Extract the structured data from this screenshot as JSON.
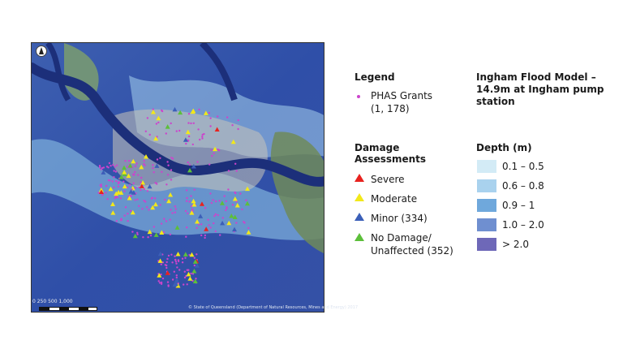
{
  "map": {
    "scale_text": "0 250 500 1,000",
    "credit": "© State of Queensland (Department of Natural Resources, Mines and Energy) 2017"
  },
  "legend": {
    "title": "Legend",
    "phas": {
      "label_line1": "PHAS Grants",
      "label_line2": "(1, 178)",
      "color": "#cc44cc"
    }
  },
  "damage": {
    "title_line1": "Damage",
    "title_line2": "Assessments",
    "items": [
      {
        "label": "Severe",
        "color": "#e8221e"
      },
      {
        "label": "Moderate",
        "color": "#f2e81a"
      },
      {
        "label": "Minor (334)",
        "color": "#3b5fb8"
      },
      {
        "label": "No Damage/",
        "label_line2": "Unaffected (352)",
        "color": "#5cbf3a"
      }
    ]
  },
  "model": {
    "title_line1": "Ingham Flood Model –",
    "title_line2": "14.9m at Ingham pump",
    "title_line3": "station"
  },
  "depth": {
    "title": "Depth (m)",
    "items": [
      {
        "label": "0.1 – 0.5",
        "color": "#d3ebf6"
      },
      {
        "label": "0.6 – 0.8",
        "color": "#a9d2ee"
      },
      {
        "label": "0.9 – 1",
        "color": "#6fa8dc"
      },
      {
        "label": "1.0 – 2.0",
        "color": "#6f8fd0"
      },
      {
        "label": "> 2.0",
        "color": "#6e68b8"
      }
    ]
  }
}
